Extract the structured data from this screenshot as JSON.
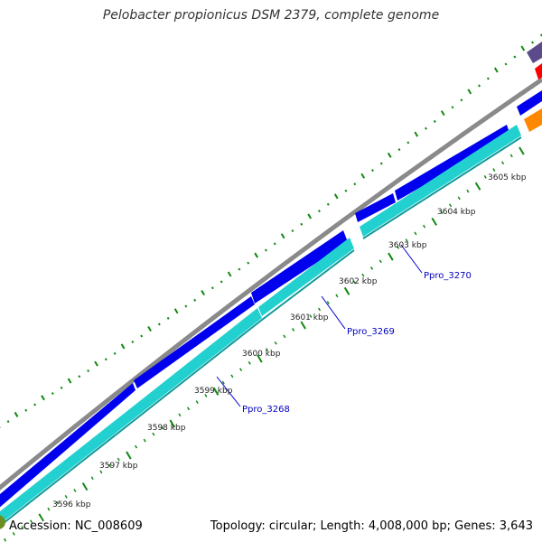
{
  "title": "Pelobacter propionicus DSM 2379, complete genome",
  "footer": {
    "accession": "Accession: NC_008609",
    "summary": "Topology: circular; Length: 4,008,000 bp; Genes: 3,643"
  },
  "colors": {
    "forward_cds": "#0000ee",
    "reverse_cds": "#22d0d0",
    "backbone": "#808080",
    "gc_ticks": "#118811",
    "label_line": "#0000cc"
  },
  "ticks": [
    {
      "label": "3596 kbp"
    },
    {
      "label": "3597 kbp"
    },
    {
      "label": "3598 kbp"
    },
    {
      "label": "3599 kbp"
    },
    {
      "label": "3600 kbp"
    },
    {
      "label": "3601 kbp"
    },
    {
      "label": "3602 kbp"
    },
    {
      "label": "3603 kbp"
    },
    {
      "label": "3604 kbp"
    },
    {
      "label": "3605 kbp"
    }
  ],
  "gene_labels": [
    {
      "label": "Ppro_3268"
    },
    {
      "label": "Ppro_3269"
    },
    {
      "label": "Ppro_3270"
    }
  ]
}
